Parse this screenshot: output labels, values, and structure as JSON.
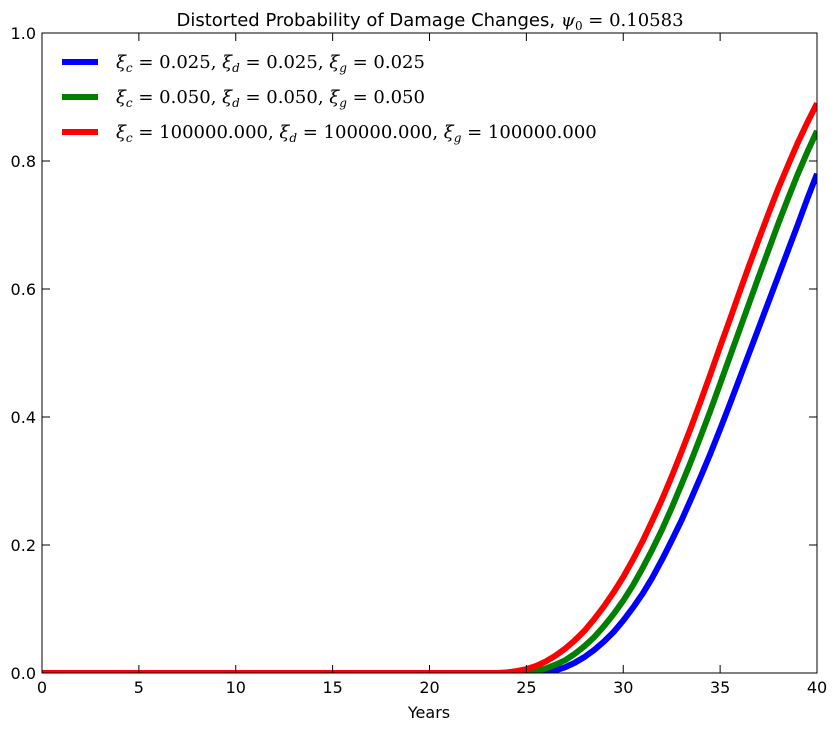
{
  "chart_data": {
    "type": "line",
    "title": "Distorted Probability of Damage Changes, ψ₀ = 0.10583",
    "xlabel": "Years",
    "ylabel": "",
    "xlim": [
      0,
      40
    ],
    "ylim": [
      0,
      1.0
    ],
    "xticks": [
      0,
      5,
      10,
      15,
      20,
      25,
      30,
      35,
      40
    ],
    "yticks": [
      0.0,
      0.2,
      0.4,
      0.6,
      0.8,
      1.0
    ],
    "xtick_labels": [
      "0",
      "5",
      "10",
      "15",
      "20",
      "25",
      "30",
      "35",
      "40"
    ],
    "ytick_labels": [
      "0.0",
      "0.2",
      "0.4",
      "0.6",
      "0.8",
      "1.0"
    ],
    "grid": false,
    "legend_position": "top-left",
    "series": [
      {
        "name": "ξc = 0.025, ξd = 0.025, ξg = 0.025",
        "color": "#0000ff",
        "x": [
          0,
          20,
          25,
          25.5,
          26,
          26.5,
          27,
          27.5,
          28,
          28.5,
          29,
          29.5,
          30,
          30.5,
          31,
          31.5,
          32,
          32.5,
          33,
          33.5,
          34,
          34.5,
          35,
          35.5,
          36,
          36.5,
          37,
          37.5,
          38,
          38.5,
          39,
          39.5,
          40
        ],
        "y": [
          0,
          0,
          0,
          0.0,
          0.001,
          0.004,
          0.009,
          0.016,
          0.025,
          0.036,
          0.049,
          0.064,
          0.082,
          0.102,
          0.124,
          0.149,
          0.177,
          0.207,
          0.238,
          0.272,
          0.307,
          0.343,
          0.381,
          0.42,
          0.46,
          0.5,
          0.54,
          0.58,
          0.62,
          0.66,
          0.7,
          0.741,
          0.78
        ]
      },
      {
        "name": "ξc = 0.050, ξd = 0.050, ξg = 0.050",
        "color": "#008000",
        "x": [
          0,
          20,
          24.5,
          25,
          25.5,
          26,
          26.5,
          27,
          27.5,
          28,
          28.5,
          29,
          29.5,
          30,
          30.5,
          31,
          31.5,
          32,
          32.5,
          33,
          33.5,
          34,
          34.5,
          35,
          35.5,
          36,
          36.5,
          37,
          37.5,
          38,
          38.5,
          39,
          39.5,
          40
        ],
        "y": [
          0,
          0,
          0,
          0.001,
          0.003,
          0.007,
          0.013,
          0.02,
          0.03,
          0.042,
          0.056,
          0.073,
          0.092,
          0.113,
          0.137,
          0.164,
          0.193,
          0.224,
          0.258,
          0.294,
          0.331,
          0.37,
          0.41,
          0.452,
          0.494,
          0.536,
          0.578,
          0.62,
          0.661,
          0.702,
          0.741,
          0.779,
          0.814,
          0.847
        ]
      },
      {
        "name": "ξc = 100000.000, ξd = 100000.000, ξg = 100000.000",
        "color": "#ff0000",
        "x": [
          0,
          20,
          23.5,
          24,
          24.5,
          25,
          25.5,
          26,
          26.5,
          27,
          27.5,
          28,
          28.5,
          29,
          29.5,
          30,
          30.5,
          31,
          31.5,
          32,
          32.5,
          33,
          33.5,
          34,
          34.5,
          35,
          35.5,
          36,
          36.5,
          37,
          37.5,
          38,
          38.5,
          39,
          39.5,
          40
        ],
        "y": [
          0,
          0,
          0,
          0.001,
          0.003,
          0.006,
          0.011,
          0.018,
          0.027,
          0.038,
          0.051,
          0.066,
          0.084,
          0.104,
          0.126,
          0.15,
          0.177,
          0.206,
          0.238,
          0.271,
          0.307,
          0.345,
          0.384,
          0.425,
          0.467,
          0.51,
          0.552,
          0.595,
          0.637,
          0.678,
          0.718,
          0.757,
          0.793,
          0.828,
          0.86,
          0.89
        ]
      }
    ]
  }
}
